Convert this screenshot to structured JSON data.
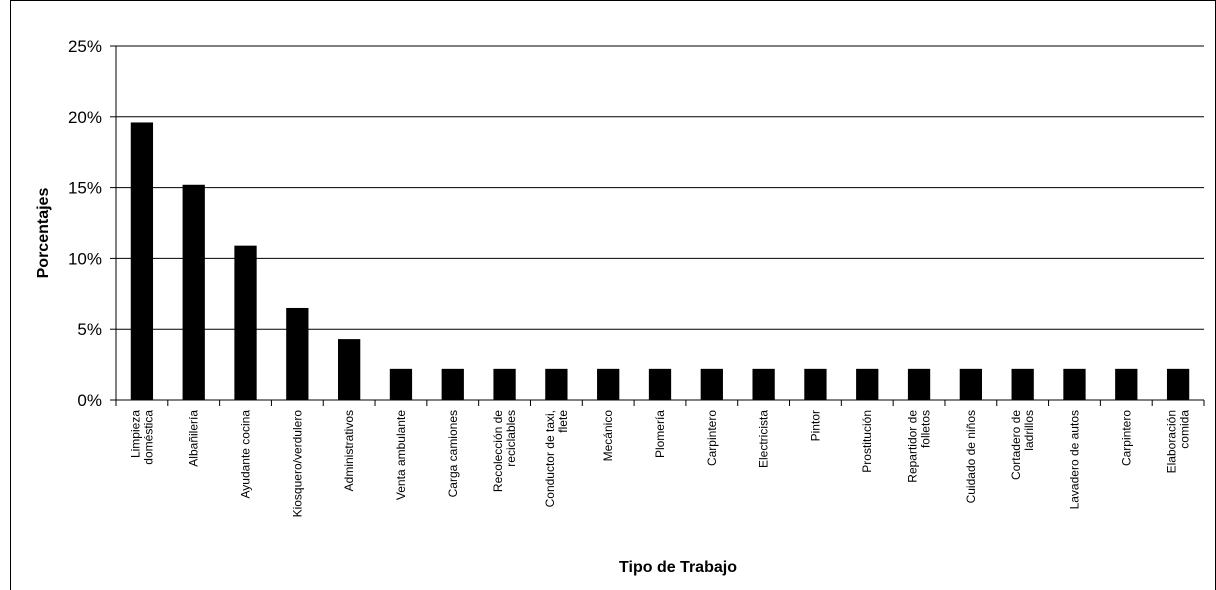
{
  "chart_data": {
    "type": "bar",
    "title": "",
    "xlabel": "Tipo de Trabajo",
    "ylabel": "Porcentajes",
    "ylim": [
      0,
      25
    ],
    "yticks": [
      "0%",
      "5%",
      "10%",
      "15%",
      "20%",
      "25%"
    ],
    "grid": true,
    "legend": "none",
    "bar_color": "#000000",
    "categories": [
      [
        "Limpieza",
        "doméstica"
      ],
      [
        "Albañilería"
      ],
      [
        "Ayudante cocina"
      ],
      [
        "Kiosquero/verdulero"
      ],
      [
        "Administrativos"
      ],
      [
        "Venta ambulante"
      ],
      [
        "Carga camiones"
      ],
      [
        "Recolección de",
        "reciclables"
      ],
      [
        "Conductor de taxi,",
        "flete"
      ],
      [
        "Mecánico"
      ],
      [
        "Plomería"
      ],
      [
        "Carpintero"
      ],
      [
        "Electricista"
      ],
      [
        "Pintor"
      ],
      [
        "Prostitución"
      ],
      [
        "Repartidor de",
        "folletos"
      ],
      [
        "Cuidado de niños"
      ],
      [
        "Cortadero de",
        "ladrillos"
      ],
      [
        "Lavadero de autos"
      ],
      [
        "Carpintero"
      ],
      [
        "Elaboración",
        "comida"
      ]
    ],
    "values": [
      19.6,
      15.2,
      10.9,
      6.5,
      4.3,
      2.2,
      2.2,
      2.2,
      2.2,
      2.2,
      2.2,
      2.2,
      2.2,
      2.2,
      2.2,
      2.2,
      2.2,
      2.2,
      2.2,
      2.2,
      2.2
    ]
  }
}
